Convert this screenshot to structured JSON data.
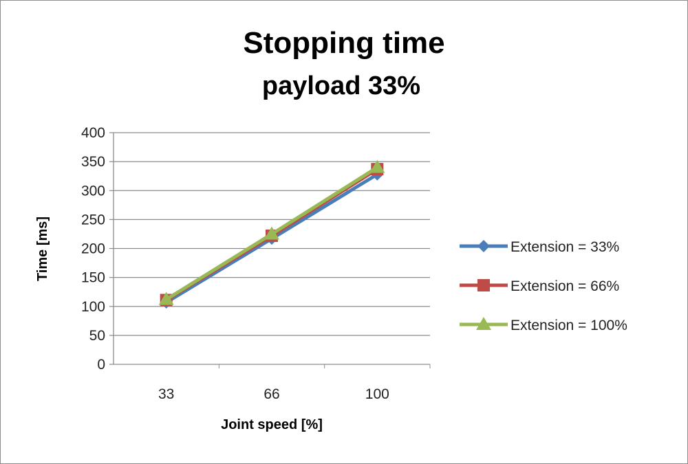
{
  "chart_data": {
    "type": "line",
    "title": "Stopping time",
    "subtitle": "payload 33%",
    "xlabel": "Joint speed [%]",
    "ylabel": "Time [ms]",
    "categories": [
      "33",
      "66",
      "100"
    ],
    "ylim": [
      0,
      400
    ],
    "yticks": [
      0,
      50,
      100,
      150,
      200,
      250,
      300,
      350,
      400
    ],
    "grid": true,
    "legend_position": "right",
    "series": [
      {
        "name": "Extension = 33%",
        "values": [
          107,
          217,
          328
        ],
        "color": "#4a7ebb",
        "marker": "diamond"
      },
      {
        "name": "Extension = 66%",
        "values": [
          111,
          222,
          337
        ],
        "color": "#be4b48",
        "marker": "square"
      },
      {
        "name": "Extension = 100%",
        "values": [
          112,
          225,
          340
        ],
        "color": "#98b954",
        "marker": "triangle"
      }
    ]
  }
}
